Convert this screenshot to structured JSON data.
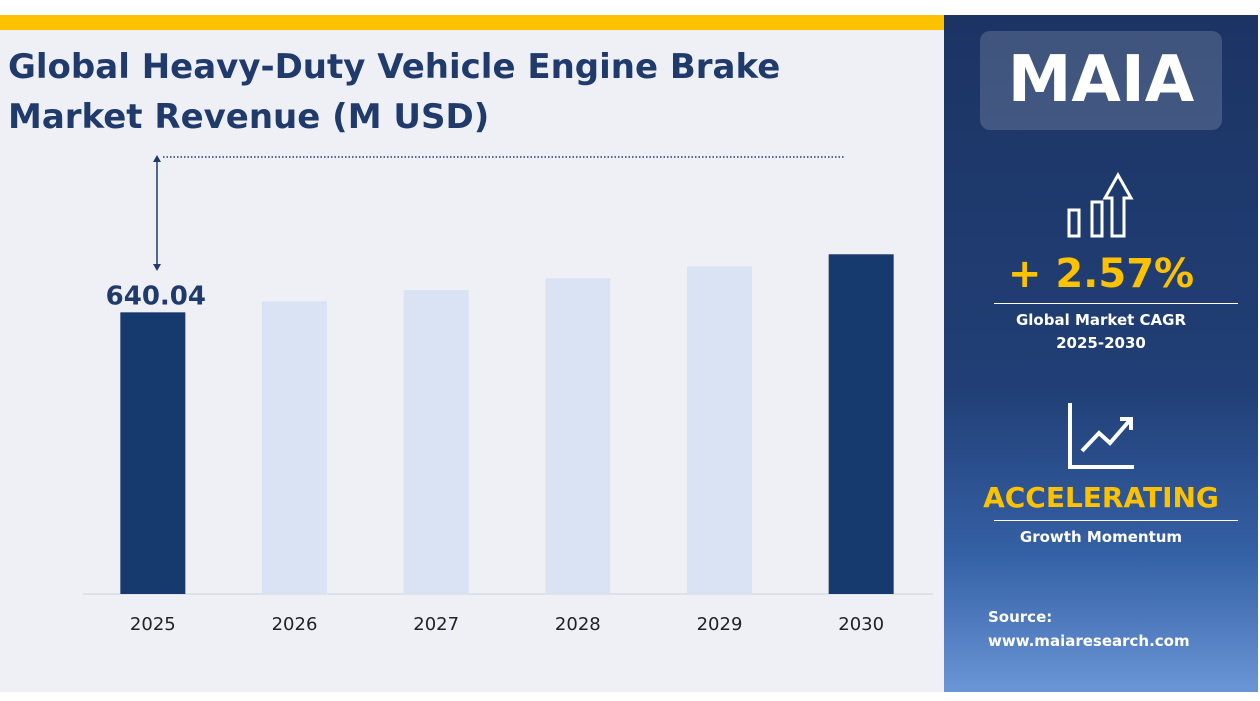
{
  "chart_data": {
    "type": "bar",
    "title": "Global Heavy-Duty Vehicle Engine Brake Market Revenue (M USD)",
    "categories": [
      "2025",
      "2026",
      "2027",
      "2028",
      "2029",
      "2030"
    ],
    "values": [
      640.04,
      656.5,
      673.4,
      690.7,
      708.4,
      726.6
    ],
    "colors": [
      "#173a6e",
      "#dae3f3",
      "#dae3f3",
      "#dae3f3",
      "#dae3f3",
      "#173a6e"
    ],
    "show_label": [
      true,
      false,
      false,
      false,
      false,
      false
    ],
    "ylim": [
      220,
      900
    ]
  },
  "sidebar": {
    "logo": "MAIA",
    "cagr": "+ 2.57%",
    "cagr_caption": "Global Market CAGR",
    "cagr_period": "2025-2030",
    "momentum": "ACCELERATING",
    "momentum_caption": "Growth Momentum",
    "source_label": "Source:",
    "source_url": "www.maiaresearch.com"
  }
}
